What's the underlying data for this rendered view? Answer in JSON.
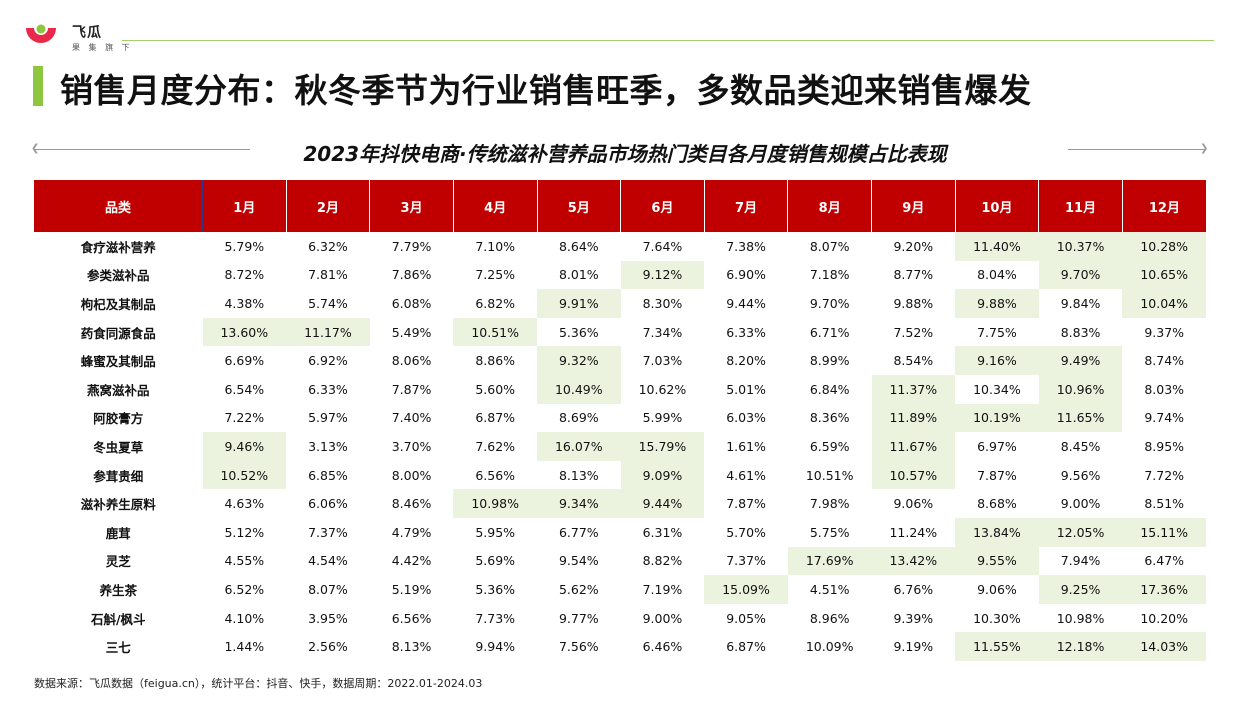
{
  "brand": {
    "name": "飞瓜",
    "tagline": "果 集 旗 下"
  },
  "page_title": "销售月度分布：秋冬季节为行业销售旺季，多数品类迎来销售爆发",
  "subtitle": "2023年抖快电商·传统滋补营养品市场热门类目各月度销售规模占比表现",
  "colors": {
    "header_red": "#c00000",
    "accent_green": "#8dc63f",
    "highlight": "#ebf3de"
  },
  "table": {
    "headers": [
      "品类",
      "1月",
      "2月",
      "3月",
      "4月",
      "5月",
      "6月",
      "7月",
      "8月",
      "9月",
      "10月",
      "11月",
      "12月"
    ],
    "rows": [
      {
        "category": "食疗滋补营养",
        "values": [
          "5.79%",
          "6.32%",
          "7.79%",
          "7.10%",
          "8.64%",
          "7.64%",
          "7.38%",
          "8.07%",
          "9.20%",
          "11.40%",
          "10.37%",
          "10.28%"
        ],
        "highlight": [
          9,
          10,
          11
        ]
      },
      {
        "category": "参类滋补品",
        "values": [
          "8.72%",
          "7.81%",
          "7.86%",
          "7.25%",
          "8.01%",
          "9.12%",
          "6.90%",
          "7.18%",
          "8.77%",
          "8.04%",
          "9.70%",
          "10.65%"
        ],
        "highlight": [
          5,
          10,
          11
        ]
      },
      {
        "category": "枸杞及其制品",
        "values": [
          "4.38%",
          "5.74%",
          "6.08%",
          "6.82%",
          "9.91%",
          "8.30%",
          "9.44%",
          "9.70%",
          "9.88%",
          "9.88%",
          "9.84%",
          "10.04%"
        ],
        "highlight": [
          4,
          9,
          11
        ]
      },
      {
        "category": "药食同源食品",
        "values": [
          "13.60%",
          "11.17%",
          "5.49%",
          "10.51%",
          "5.36%",
          "7.34%",
          "6.33%",
          "6.71%",
          "7.52%",
          "7.75%",
          "8.83%",
          "9.37%"
        ],
        "highlight": [
          0,
          1,
          3
        ]
      },
      {
        "category": "蜂蜜及其制品",
        "values": [
          "6.69%",
          "6.92%",
          "8.06%",
          "8.86%",
          "9.32%",
          "7.03%",
          "8.20%",
          "8.99%",
          "8.54%",
          "9.16%",
          "9.49%",
          "8.74%"
        ],
        "highlight": [
          4,
          9,
          10
        ]
      },
      {
        "category": "燕窝滋补品",
        "values": [
          "6.54%",
          "6.33%",
          "7.87%",
          "5.60%",
          "10.49%",
          "10.62%",
          "5.01%",
          "6.84%",
          "11.37%",
          "10.34%",
          "10.96%",
          "8.03%"
        ],
        "highlight": [
          4,
          8,
          10
        ]
      },
      {
        "category": "阿胶膏方",
        "values": [
          "7.22%",
          "5.97%",
          "7.40%",
          "6.87%",
          "8.69%",
          "5.99%",
          "6.03%",
          "8.36%",
          "11.89%",
          "10.19%",
          "11.65%",
          "9.74%"
        ],
        "highlight": [
          8,
          9,
          10
        ]
      },
      {
        "category": "冬虫夏草",
        "values": [
          "9.46%",
          "3.13%",
          "3.70%",
          "7.62%",
          "16.07%",
          "15.79%",
          "1.61%",
          "6.59%",
          "11.67%",
          "6.97%",
          "8.45%",
          "8.95%"
        ],
        "highlight": [
          0,
          4,
          5,
          8
        ]
      },
      {
        "category": "参茸贵细",
        "values": [
          "10.52%",
          "6.85%",
          "8.00%",
          "6.56%",
          "8.13%",
          "9.09%",
          "4.61%",
          "10.51%",
          "10.57%",
          "7.87%",
          "9.56%",
          "7.72%"
        ],
        "highlight": [
          0,
          5,
          8
        ]
      },
      {
        "category": "滋补养生原料",
        "values": [
          "4.63%",
          "6.06%",
          "8.46%",
          "10.98%",
          "9.34%",
          "9.44%",
          "7.87%",
          "7.98%",
          "9.06%",
          "8.68%",
          "9.00%",
          "8.51%"
        ],
        "highlight": [
          3,
          4,
          5
        ]
      },
      {
        "category": "鹿茸",
        "values": [
          "5.12%",
          "7.37%",
          "4.79%",
          "5.95%",
          "6.77%",
          "6.31%",
          "5.70%",
          "5.75%",
          "11.24%",
          "13.84%",
          "12.05%",
          "15.11%"
        ],
        "highlight": [
          9,
          10,
          11
        ]
      },
      {
        "category": "灵芝",
        "values": [
          "4.55%",
          "4.54%",
          "4.42%",
          "5.69%",
          "9.54%",
          "8.82%",
          "7.37%",
          "17.69%",
          "13.42%",
          "9.55%",
          "7.94%",
          "6.47%"
        ],
        "highlight": [
          7,
          8,
          9
        ]
      },
      {
        "category": "养生茶",
        "values": [
          "6.52%",
          "8.07%",
          "5.19%",
          "5.36%",
          "5.62%",
          "7.19%",
          "15.09%",
          "4.51%",
          "6.76%",
          "9.06%",
          "9.25%",
          "17.36%"
        ],
        "highlight": [
          6,
          10,
          11
        ]
      },
      {
        "category": "石斛/枫斗",
        "values": [
          "4.10%",
          "3.95%",
          "6.56%",
          "7.73%",
          "9.77%",
          "9.00%",
          "9.05%",
          "8.96%",
          "9.39%",
          "10.30%",
          "10.98%",
          "10.20%"
        ],
        "highlight": []
      },
      {
        "category": "三七",
        "values": [
          "1.44%",
          "2.56%",
          "8.13%",
          "9.94%",
          "7.56%",
          "6.46%",
          "6.87%",
          "10.09%",
          "9.19%",
          "11.55%",
          "12.18%",
          "14.03%"
        ],
        "highlight": [
          9,
          10,
          11
        ]
      }
    ]
  },
  "footer": "数据来源：飞瓜数据（feigua.cn），统计平台：抖音、快手，数据周期：2022.01-2024.03"
}
